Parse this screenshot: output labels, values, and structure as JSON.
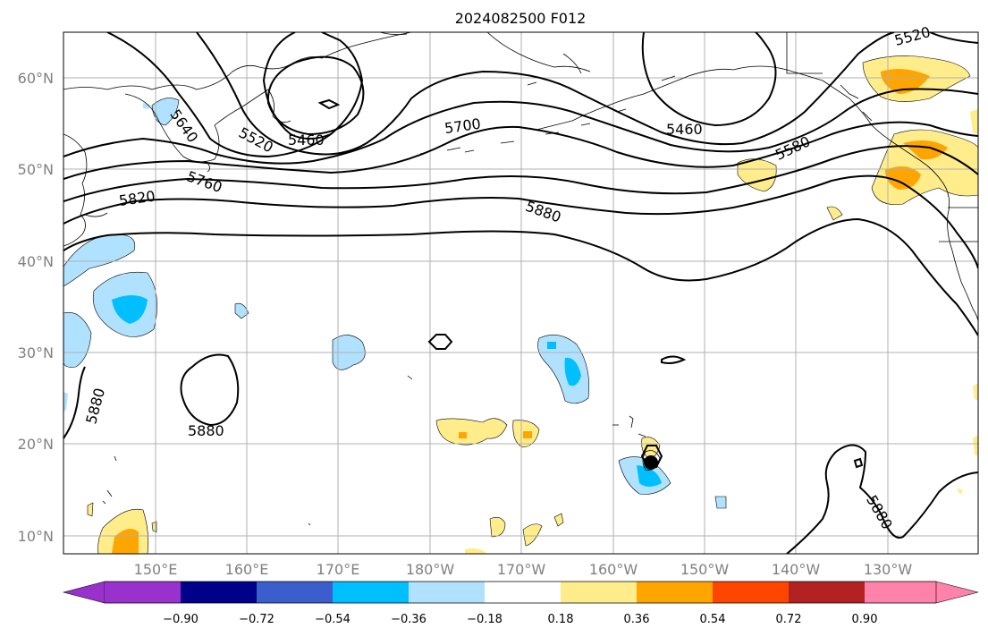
{
  "title": "2024082500 F012",
  "lat_labels": [
    "60°N",
    "50°N",
    "40°N",
    "30°N",
    "20°N",
    "10°N"
  ],
  "lon_labels": [
    "150°E",
    "160°E",
    "170°E",
    "180°W",
    "170°W",
    "160°W",
    "150°W",
    "140°W",
    "130°W"
  ],
  "contour_labels": [
    "5640",
    "5520",
    "5460",
    "5700",
    "5460",
    "5580",
    "5520",
    "5820",
    "5760",
    "5880",
    "5880",
    "5880",
    "5880"
  ],
  "colorbar": {
    "ticks": [
      "−0.90",
      "−0.72",
      "−0.54",
      "−0.36",
      "−0.18",
      "0.18",
      "0.36",
      "0.54",
      "0.72",
      "0.90"
    ],
    "colors": [
      "#9932cc",
      "#00008b",
      "#3a5fcd",
      "#00bfff",
      "#b0e2ff",
      "#ffffff",
      "#ffec8b",
      "#ffa500",
      "#ff4500",
      "#b22222",
      "#ff82ab"
    ]
  }
}
